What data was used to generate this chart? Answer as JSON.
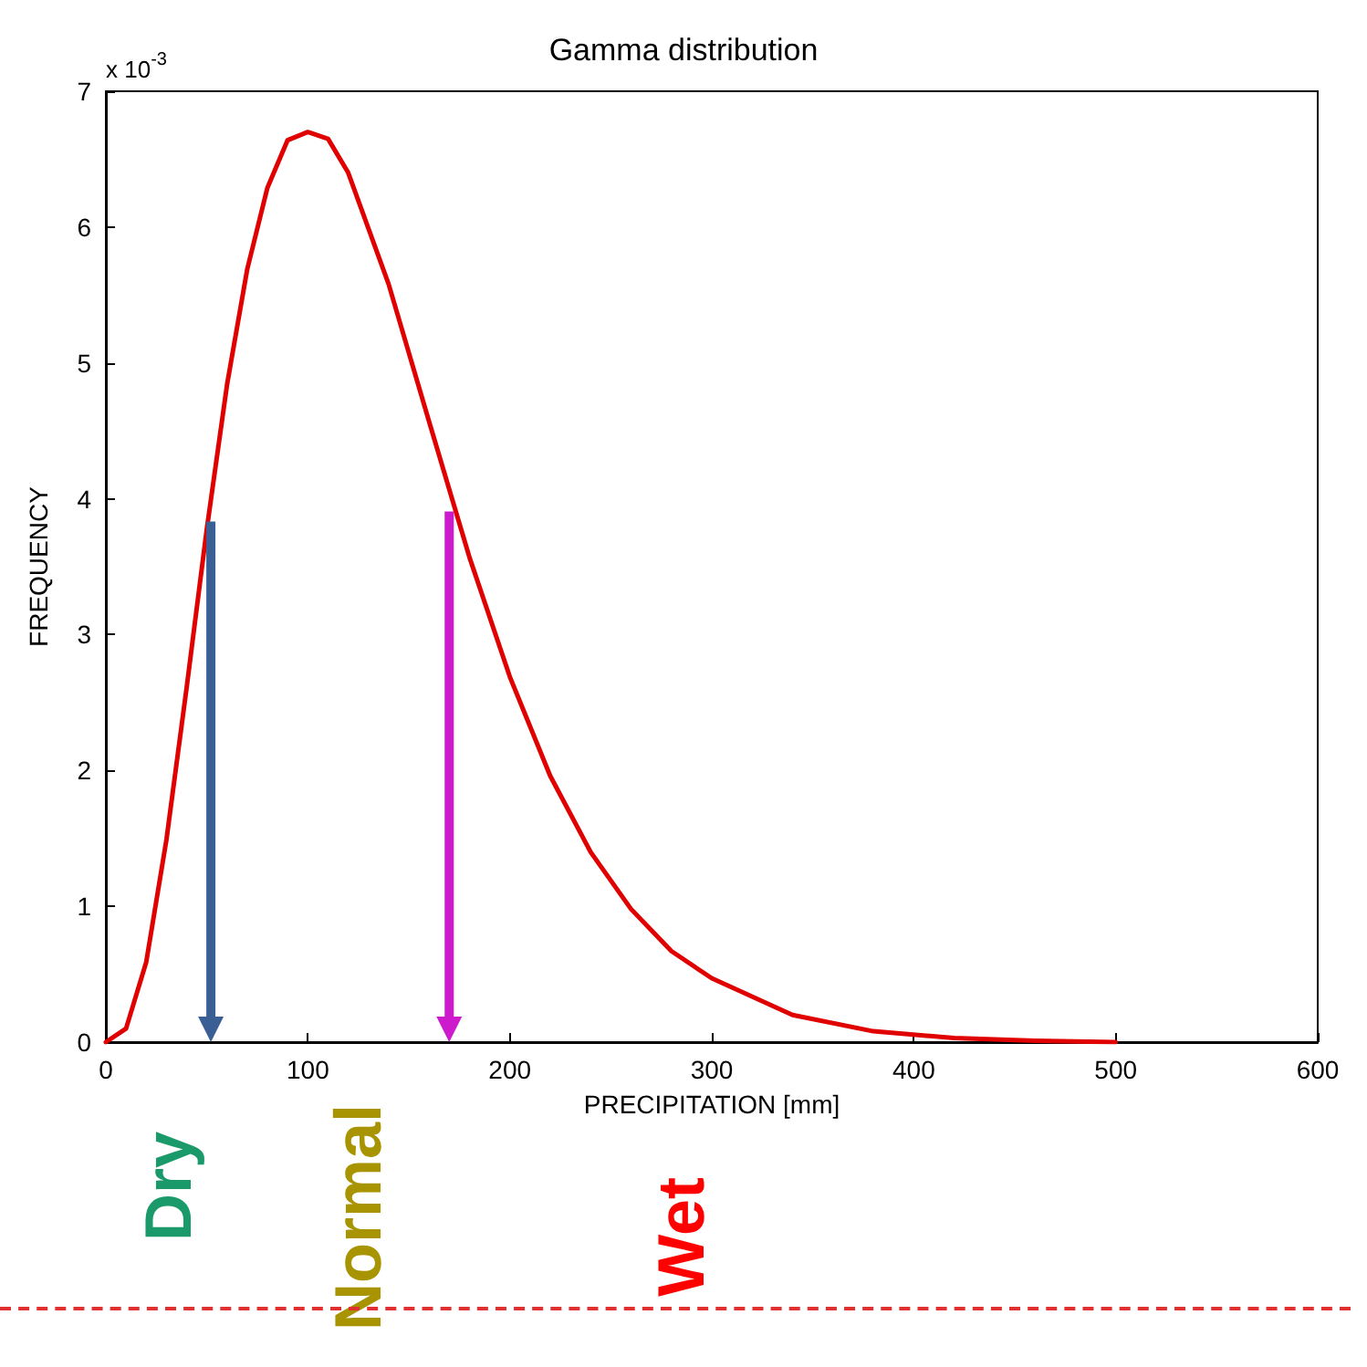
{
  "chart_data": {
    "type": "line",
    "title": "Gamma distribution",
    "xlabel": "PRECIPITATION [mm]",
    "ylabel": "FREQUENCY",
    "x": [
      0,
      10,
      20,
      30,
      40,
      50,
      60,
      70,
      80,
      90,
      100,
      110,
      120,
      140,
      160,
      180,
      200,
      220,
      240,
      260,
      280,
      300,
      340,
      380,
      420,
      460,
      500
    ],
    "series": [
      {
        "color": "#e00000",
        "values": [
          0,
          0.1,
          0.59,
          1.49,
          2.61,
          3.78,
          4.84,
          5.69,
          6.29,
          6.64,
          6.7,
          6.65,
          6.4,
          5.58,
          4.57,
          3.57,
          2.69,
          1.96,
          1.4,
          0.98,
          0.67,
          0.47,
          0.2,
          0.08,
          0.03,
          0.01,
          0
        ]
      }
    ],
    "xlim": [
      0,
      600
    ],
    "xticks": [
      0,
      100,
      200,
      300,
      400,
      500,
      600
    ],
    "ylim": [
      0,
      7
    ],
    "yticks": [
      0,
      1,
      2,
      3,
      4,
      5,
      6,
      7
    ],
    "ref_lines": [
      {
        "axis": "x",
        "value": 52,
        "color": "#3a5f94"
      },
      {
        "axis": "x",
        "value": 170,
        "color": "#cc1acc"
      }
    ],
    "annotations": [
      "x 10$^{-3}$",
      "Dry",
      "Normal",
      "Wet"
    ],
    "grid": false,
    "marker": "none",
    "line_style": "solid"
  }
}
